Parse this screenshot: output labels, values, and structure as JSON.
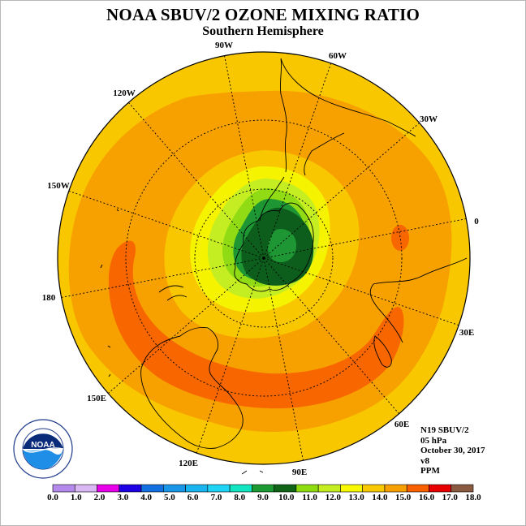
{
  "header": {
    "title": "NOAA SBUV/2 OZONE MIXING RATIO",
    "subtitle": "Southern Hemisphere"
  },
  "longitude_labels": [
    {
      "id": "90w",
      "text": "90W"
    },
    {
      "id": "60w",
      "text": "60W"
    },
    {
      "id": "30w",
      "text": "30W"
    },
    {
      "id": "0",
      "text": "0"
    },
    {
      "id": "30e",
      "text": "30E"
    },
    {
      "id": "60e",
      "text": "60E"
    },
    {
      "id": "90e",
      "text": "90E"
    },
    {
      "id": "120e",
      "text": "120E"
    },
    {
      "id": "150e",
      "text": "150E"
    },
    {
      "id": "180",
      "text": "180"
    },
    {
      "id": "150w",
      "text": "150W"
    },
    {
      "id": "120w",
      "text": "120W"
    }
  ],
  "info": {
    "satellite": "N19 SBUV/2",
    "level": "05 hPa",
    "date": "October 30, 2017",
    "version": "v8",
    "unit": "PPM"
  },
  "logo": {
    "text": "NOAA",
    "ring_text": "NATIONAL OCEANIC AND ATMOSPHERIC ADMINISTRATION",
    "dept_text": "U.S. DEPARTMENT OF COMMERCE"
  },
  "colorbar": {
    "ticks": [
      "0.0",
      "1.0",
      "2.0",
      "3.0",
      "4.0",
      "5.0",
      "6.0",
      "7.0",
      "8.0",
      "9.0",
      "10.0",
      "11.0",
      "12.0",
      "13.0",
      "14.0",
      "15.0",
      "16.0",
      "17.0",
      "18.0"
    ],
    "colors": [
      "#b58aec",
      "#dab8f3",
      "#e800e8",
      "#1e00e4",
      "#1270e0",
      "#1a96e8",
      "#1ab4f0",
      "#20d4f8",
      "#10e4c0",
      "#1a9a30",
      "#0f6418",
      "#8edc10",
      "#c4ee20",
      "#f8f800",
      "#f8c800",
      "#f8a000",
      "#f86000",
      "#e80000",
      "#8a5a40"
    ]
  },
  "map_colors": {
    "ozone_13_14": "#f9c700",
    "ozone_14_15": "#f7a100",
    "ozone_15_16": "#f86600",
    "ozone_12_13": "#f5f300",
    "ozone_11_12": "#c5ee22",
    "ozone_10_11": "#90db14",
    "ozone_9_10": "#1d9633",
    "ozone_8_9": "#0d5e1c"
  }
}
